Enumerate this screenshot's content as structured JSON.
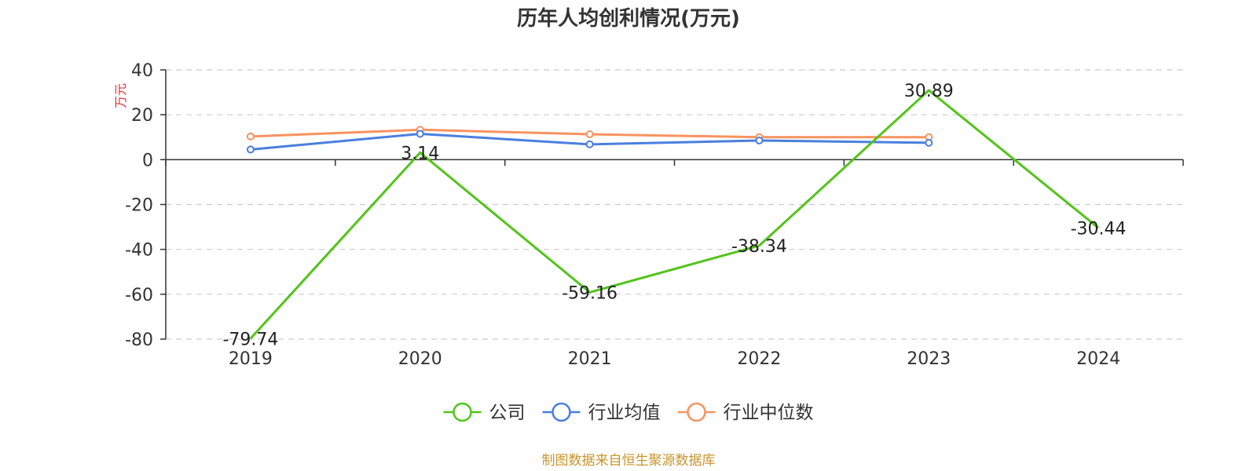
{
  "chart_data": {
    "type": "line",
    "title": "历年人均创利情况(万元)",
    "ylabel": "万元",
    "categories": [
      "2019",
      "2020",
      "2021",
      "2022",
      "2023",
      "2024"
    ],
    "ylim": [
      -80,
      40
    ],
    "yticks": [
      40,
      20,
      0,
      -20,
      -40,
      -60,
      -80
    ],
    "grid": true,
    "legend_position": "bottom",
    "series": [
      {
        "name": "公司",
        "color": "#52c41a",
        "values": [
          -79.74,
          3.14,
          -59.16,
          -38.34,
          30.89,
          -30.44
        ],
        "labels": [
          "-79.74",
          "3.14",
          "-59.16",
          "-38.34",
          "30.89",
          "-30.44"
        ]
      },
      {
        "name": "行业均值",
        "color": "#4a7fde",
        "values": [
          4.5,
          11.5,
          6.8,
          8.5,
          7.5,
          null
        ]
      },
      {
        "name": "行业中位数",
        "color": "#f79360",
        "values": [
          10.3,
          13.3,
          11.3,
          10.0,
          10.0,
          null
        ]
      }
    ]
  },
  "source_text": "制图数据来自恒生聚源数据库",
  "colors": {
    "title": "#333333",
    "axis_unit": "#e03030",
    "source": "#c8952d",
    "grid": "#cccccc",
    "axis": "#333333"
  }
}
